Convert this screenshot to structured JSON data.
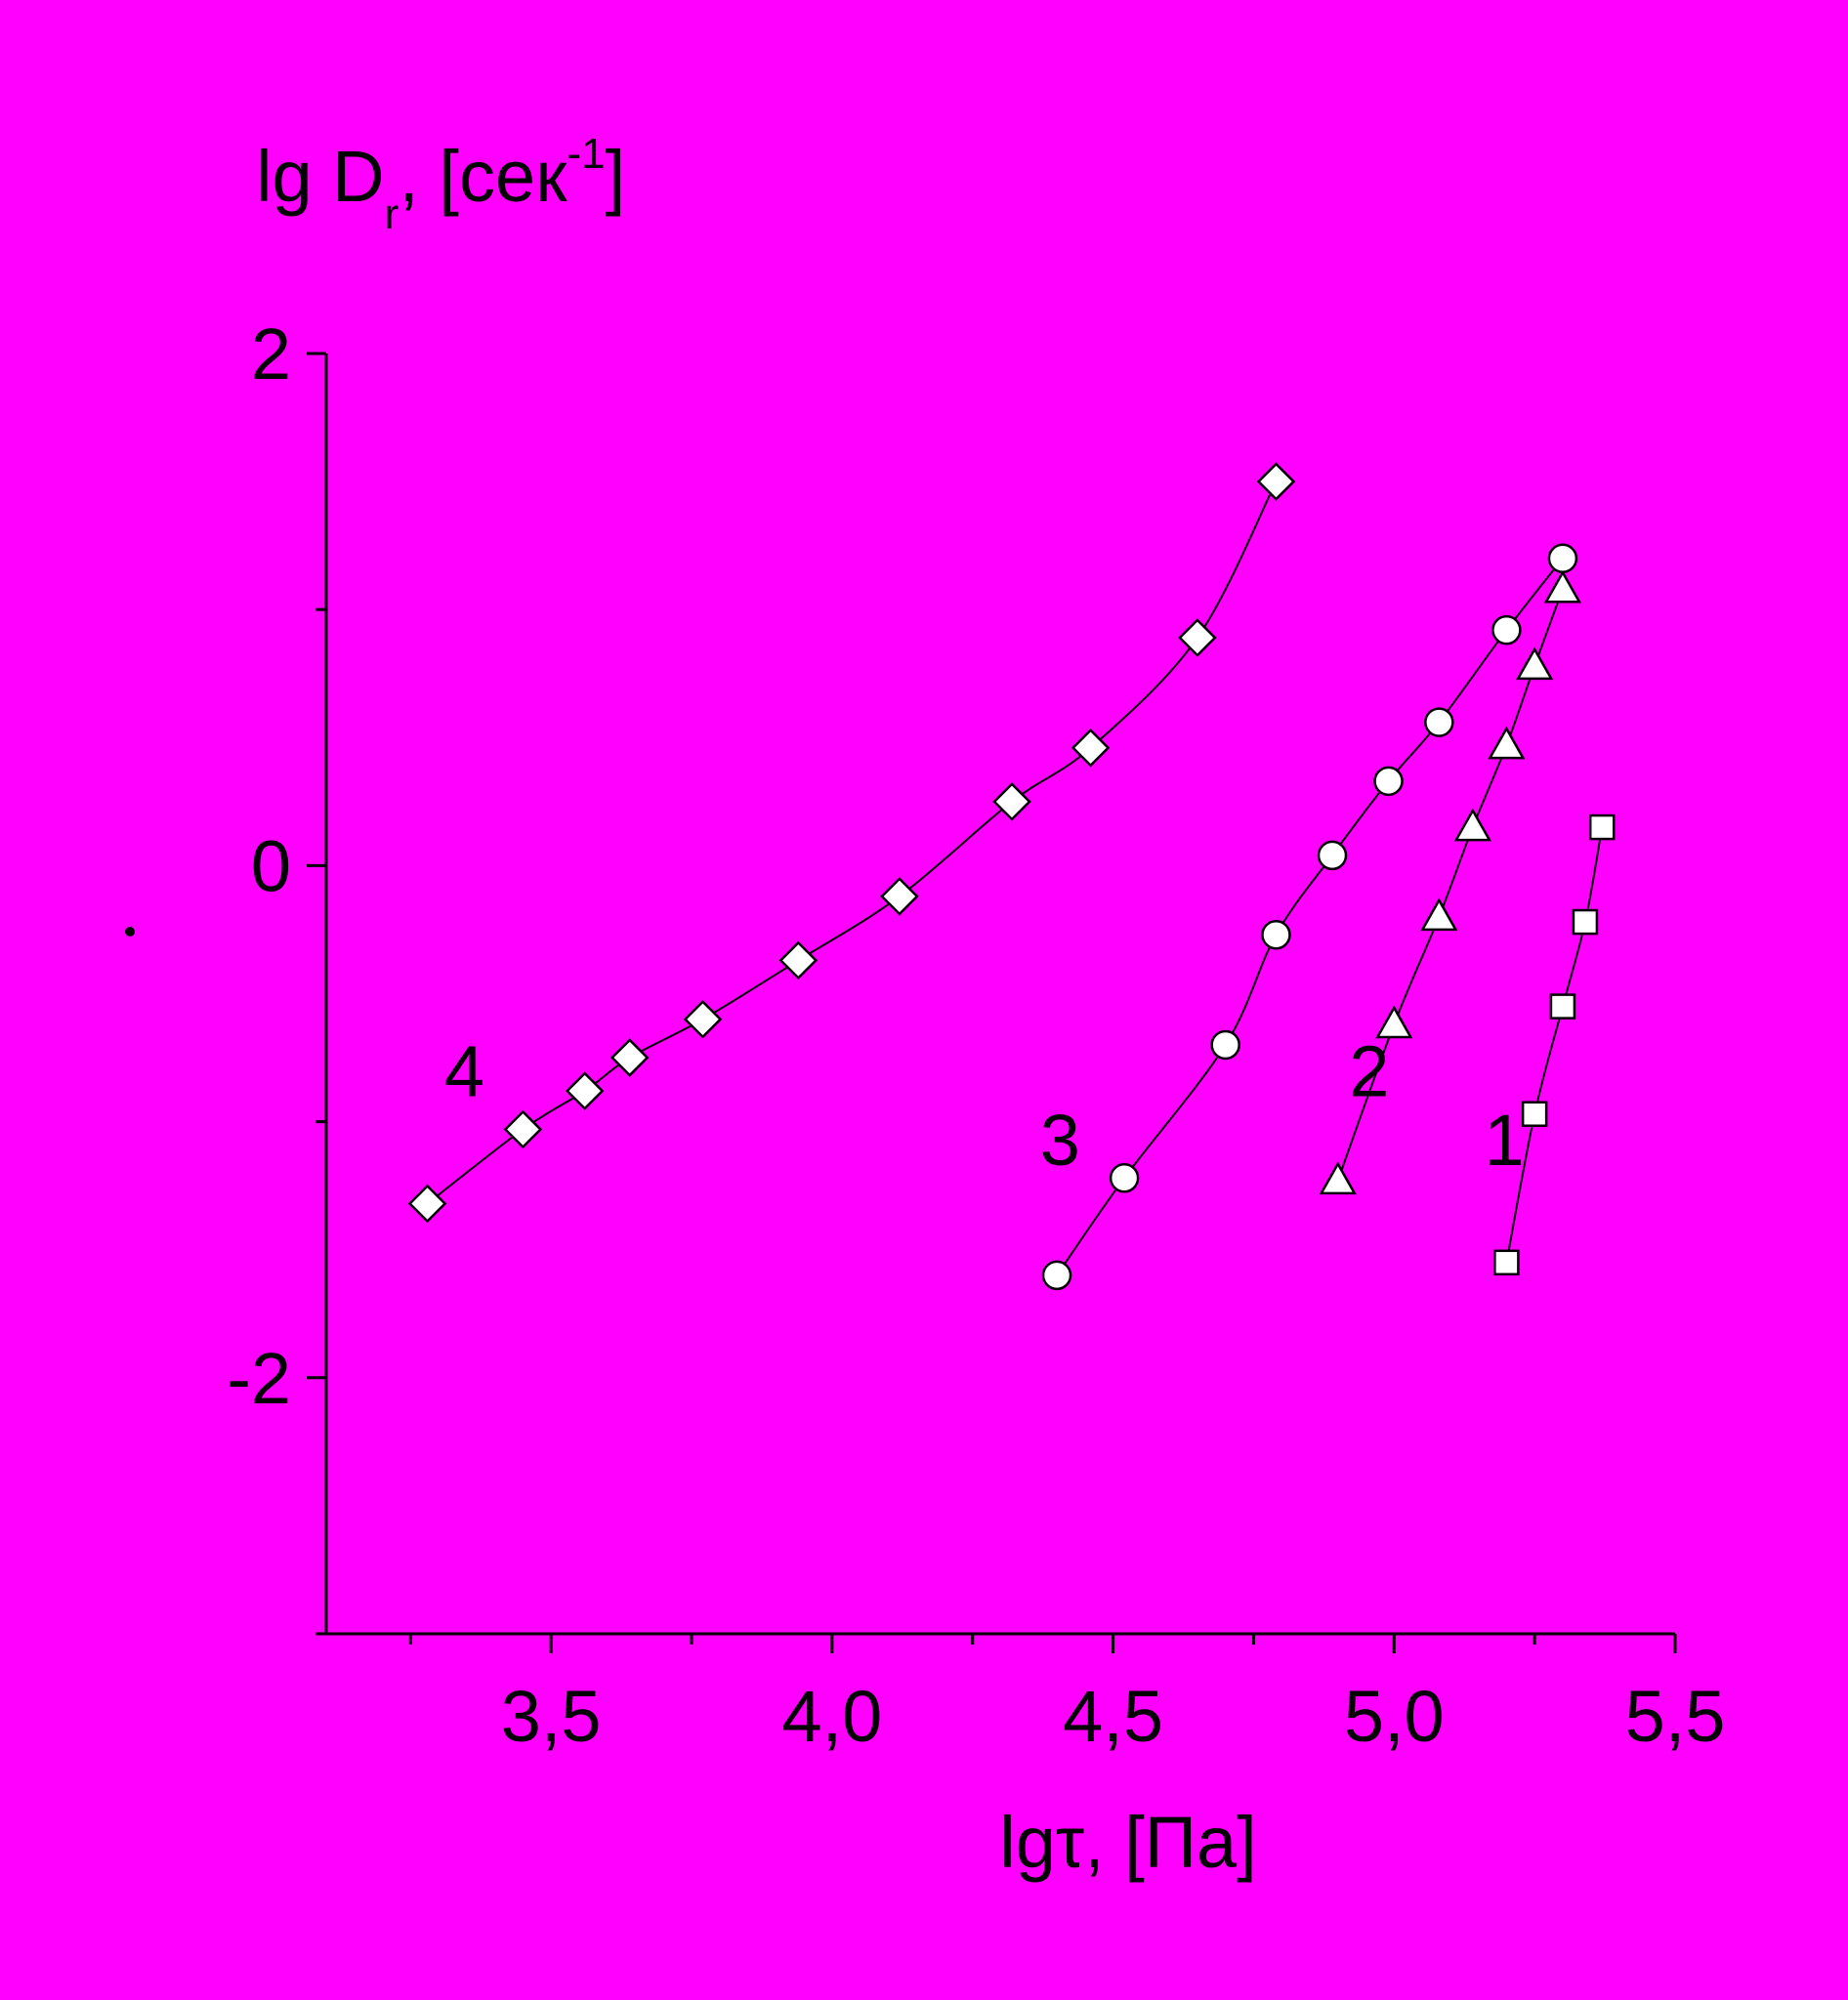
{
  "colors": {
    "background": "#FF00FF",
    "axis": "#000000",
    "marker_fill": "#FFFFFF",
    "line": "#000000"
  },
  "chart_data": {
    "type": "line",
    "xlabel": "lgτ, [Па]",
    "ylabel": {
      "base": "lg D",
      "sub": "r",
      "rest": ", [сек",
      "sup": "-1",
      "close": "]"
    },
    "xlim": [
      3.1,
      5.5
    ],
    "ylim": [
      -3,
      2
    ],
    "x_ticks": [
      {
        "v": 3.5,
        "label": "3,5"
      },
      {
        "v": 4.0,
        "label": "4,0"
      },
      {
        "v": 4.5,
        "label": "4,5"
      },
      {
        "v": 5.0,
        "label": "5,0"
      },
      {
        "v": 5.5,
        "label": "5,5"
      }
    ],
    "x_minor_ticks": [
      3.25,
      3.75,
      4.25,
      4.75,
      5.25
    ],
    "y_ticks": [
      {
        "v": 2,
        "label": "2"
      },
      {
        "v": 0,
        "label": "0"
      },
      {
        "v": -2,
        "label": "-2"
      }
    ],
    "y_minor_ticks": [
      1,
      -1,
      -3
    ],
    "grid": false,
    "legend": "none",
    "series": [
      {
        "label": "1",
        "marker": "square",
        "label_at": {
          "x": 5.16,
          "y": -1.17
        },
        "points": [
          [
            5.2,
            -1.55
          ],
          [
            5.25,
            -0.97
          ],
          [
            5.3,
            -0.55
          ],
          [
            5.34,
            -0.22
          ],
          [
            5.37,
            0.15
          ]
        ]
      },
      {
        "label": "2",
        "marker": "triangle",
        "label_at": {
          "x": 4.92,
          "y": -0.9
        },
        "points": [
          [
            4.9,
            -1.23
          ],
          [
            5.0,
            -0.62
          ],
          [
            5.08,
            -0.2
          ],
          [
            5.14,
            0.15
          ],
          [
            5.2,
            0.47
          ],
          [
            5.25,
            0.78
          ],
          [
            5.3,
            1.08
          ]
        ]
      },
      {
        "label": "3",
        "marker": "circle",
        "label_at": {
          "x": 4.37,
          "y": -1.17
        },
        "points": [
          [
            4.4,
            -1.6
          ],
          [
            4.52,
            -1.22
          ],
          [
            4.7,
            -0.7
          ],
          [
            4.79,
            -0.27
          ],
          [
            4.89,
            0.04
          ],
          [
            4.99,
            0.33
          ],
          [
            5.08,
            0.56
          ],
          [
            5.2,
            0.92
          ],
          [
            5.3,
            1.2
          ]
        ]
      },
      {
        "label": "4",
        "marker": "diamond",
        "label_at": {
          "x": 3.31,
          "y": -0.9
        },
        "points": [
          [
            3.28,
            -1.32
          ],
          [
            3.45,
            -1.03
          ],
          [
            3.56,
            -0.88
          ],
          [
            3.64,
            -0.75
          ],
          [
            3.77,
            -0.6
          ],
          [
            3.94,
            -0.37
          ],
          [
            4.12,
            -0.12
          ],
          [
            4.32,
            0.25
          ],
          [
            4.46,
            0.46
          ],
          [
            4.65,
            0.89
          ],
          [
            4.79,
            1.5
          ]
        ]
      }
    ]
  }
}
